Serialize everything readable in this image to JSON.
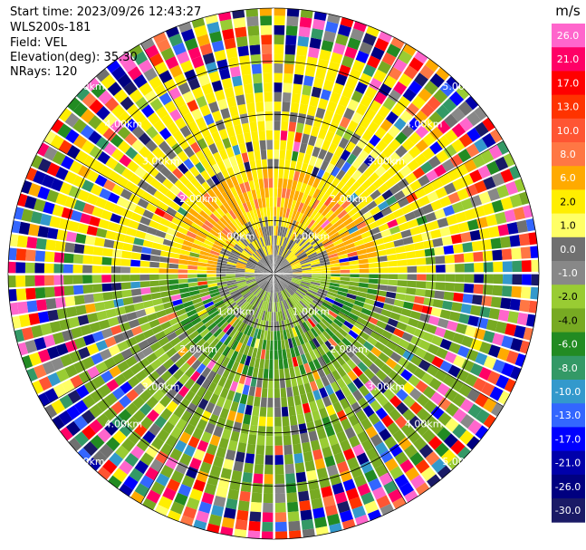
{
  "header": {
    "start_time": "Start time: 2023/09/26 12:43:27",
    "instrument": "WLS200s-181",
    "field": "Field: VEL",
    "elevation": "Elevation(deg): 35.30",
    "nrays": "NRays: 120"
  },
  "chart_data": {
    "type": "heatmap",
    "projection": "polar",
    "n_rays": 120,
    "range_rings_km": [
      1.0,
      2.0,
      3.0,
      4.0,
      5.0
    ],
    "range_ring_labels": [
      "1.00km",
      "2.00km",
      "3.00km",
      "4.00km",
      "5.00km"
    ],
    "radial_lines_deg": [
      0,
      30,
      60,
      90,
      120,
      150,
      180,
      210,
      240,
      270,
      300,
      330
    ],
    "colorbar": {
      "unit": "m/s",
      "range": [
        -30.0,
        30.0
      ],
      "ticks": [
        "26.0",
        "21.0",
        "17.0",
        "13.0",
        "10.0",
        "8.0",
        "6.0",
        "2.0",
        "1.0",
        "0.0",
        "-1.0",
        "-2.0",
        "-4.0",
        "-6.0",
        "-8.0",
        "-10.0",
        "-13.0",
        "-17.0",
        "-21.0",
        "-26.0",
        "-30.0"
      ],
      "colors": [
        "#ff66cc",
        "#ff0066",
        "#ff0000",
        "#ff3300",
        "#ff5533",
        "#ff7744",
        "#ffaa00",
        "#ffee00",
        "#ffff66",
        "#707070",
        "#888888",
        "#99cc33",
        "#77aa22",
        "#228b22",
        "#339966",
        "#3399cc",
        "#3366ff",
        "#0000ff",
        "#0000aa",
        "#000080",
        "#1a1a66"
      ]
    }
  }
}
